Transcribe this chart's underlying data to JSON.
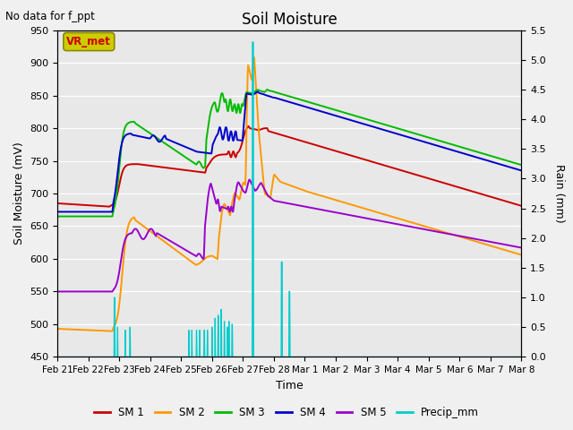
{
  "title": "Soil Moisture",
  "subtitle": "No data for f_ppt",
  "xlabel": "Time",
  "ylabel_left": "Soil Moisture (mV)",
  "ylabel_right": "Rain (mm)",
  "ylim_left": [
    450,
    950
  ],
  "ylim_right": [
    0.0,
    5.5
  ],
  "yticks_left": [
    450,
    500,
    550,
    600,
    650,
    700,
    750,
    800,
    850,
    900,
    950
  ],
  "yticks_right": [
    0.0,
    0.5,
    1.0,
    1.5,
    2.0,
    2.5,
    3.0,
    3.5,
    4.0,
    4.5,
    5.0,
    5.5
  ],
  "xtick_labels": [
    "Feb 21",
    "Feb 22",
    "Feb 23",
    "Feb 24",
    "Feb 25",
    "Feb 26",
    "Feb 27",
    "Feb 28",
    "Mar 1",
    "Mar 2",
    "Mar 3",
    "Mar 4",
    "Mar 5",
    "Mar 6",
    "Mar 7",
    "Mar 8"
  ],
  "colors": {
    "SM1": "#cc0000",
    "SM2": "#ff9900",
    "SM3": "#00bb00",
    "SM4": "#0000cc",
    "SM5": "#9900cc",
    "precip": "#00cccc",
    "fig_bg": "#f0f0f0",
    "plot_bg": "#e8e8e8"
  },
  "vr_met_box_color": "#cccc00",
  "vr_met_text_color": "#cc0000",
  "figsize": [
    6.4,
    4.8
  ],
  "dpi": 100
}
